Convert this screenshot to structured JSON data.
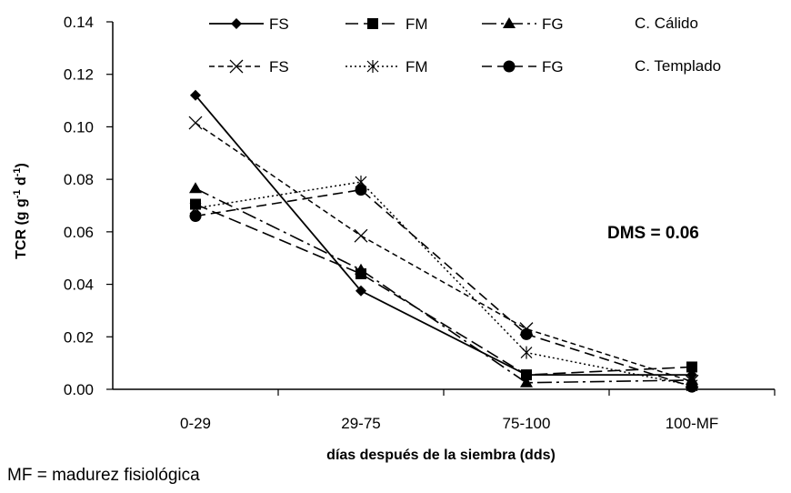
{
  "chart_data": {
    "type": "line",
    "categories": [
      "0-29",
      "29-75",
      "75-100",
      "100-MF"
    ],
    "xlabel": "días después de la siembra (dds)",
    "ylabel": {
      "main": "TCR (g g",
      "sup1": "-1",
      "mid": " d",
      "sup2": "-1",
      "end": ")"
    },
    "ylim": [
      0,
      0.14
    ],
    "yticks": [
      "0.00",
      "0.02",
      "0.04",
      "0.06",
      "0.08",
      "0.10",
      "0.12",
      "0.14"
    ],
    "grid": false,
    "legend_position": "top",
    "legend_groups": [
      "C. Cálido",
      "C. Templado"
    ],
    "annotation": "DMS = 0.06",
    "series": [
      {
        "name": "FS",
        "group": "C. Cálido",
        "marker": "diamond",
        "line": "solid",
        "values": [
          0.112,
          0.0375,
          0.0055,
          0.0055
        ]
      },
      {
        "name": "FM",
        "group": "C. Cálido",
        "marker": "square",
        "line": "longdash",
        "values": [
          0.0705,
          0.044,
          0.0055,
          0.0085
        ]
      },
      {
        "name": "FG",
        "group": "C. Cálido",
        "marker": "triangle",
        "line": "dashdot",
        "values": [
          0.0765,
          0.0455,
          0.0025,
          0.0035
        ]
      },
      {
        "name": "FS",
        "group": "C. Templado",
        "marker": "x",
        "line": "shortdash",
        "values": [
          0.1015,
          0.0585,
          0.023,
          0.003
        ]
      },
      {
        "name": "FM",
        "group": "C. Templado",
        "marker": "star",
        "line": "dotted",
        "values": [
          0.069,
          0.079,
          0.014,
          0.0015
        ]
      },
      {
        "name": "FG",
        "group": "C. Templado",
        "marker": "circle",
        "line": "dash",
        "values": [
          0.066,
          0.076,
          0.021,
          0.001
        ]
      }
    ],
    "colors": {
      "line": "#000000",
      "background": "#ffffff"
    }
  },
  "footnote": "MF = madurez fisiológica"
}
